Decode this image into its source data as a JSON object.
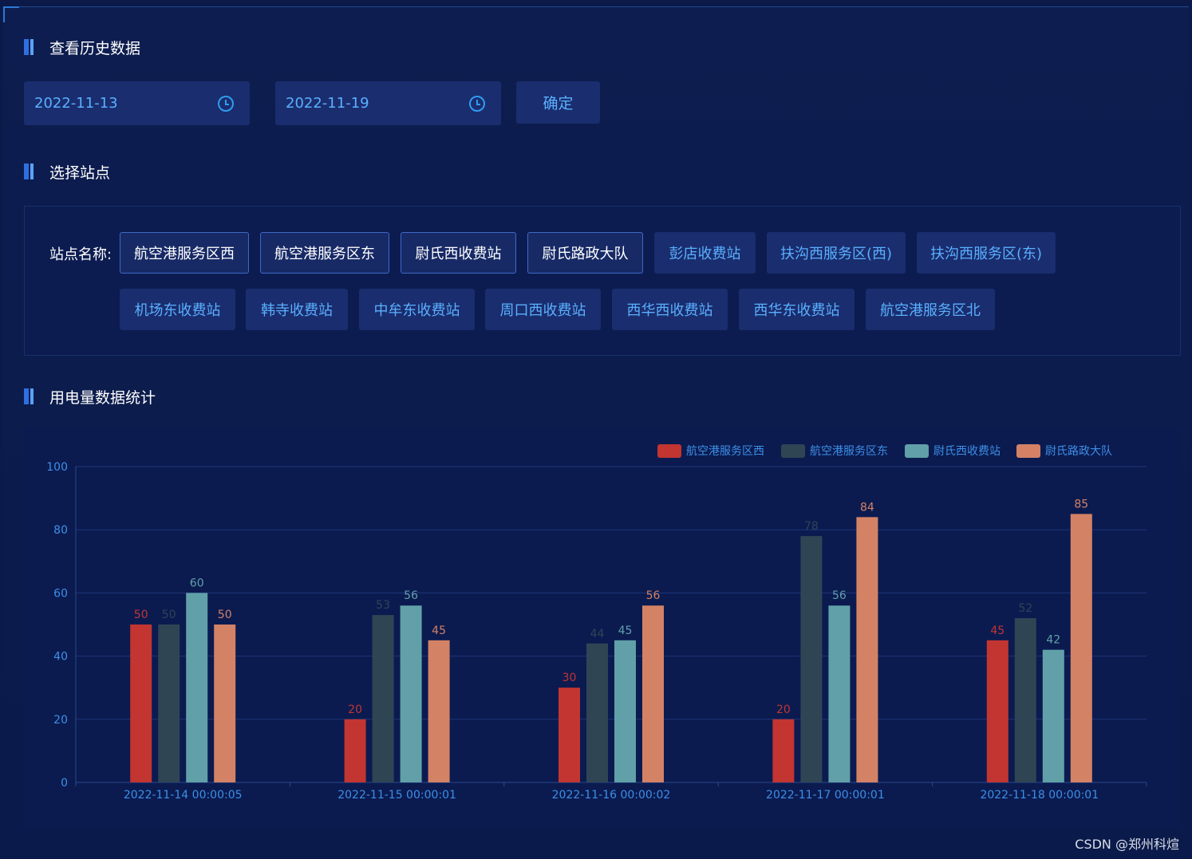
{
  "sections": {
    "history": "查看历史数据",
    "stations": "选择站点",
    "stats": "用电量数据统计"
  },
  "dates": {
    "start": "2022-11-13",
    "end": "2022-11-19",
    "confirm_label": "确定"
  },
  "station_label": "站点名称:",
  "stations": [
    {
      "name": "航空港服务区西",
      "selected": true
    },
    {
      "name": "航空港服务区东",
      "selected": true
    },
    {
      "name": "尉氏西收费站",
      "selected": true
    },
    {
      "name": "尉氏路政大队",
      "selected": true
    },
    {
      "name": "彭店收费站",
      "selected": false
    },
    {
      "name": "扶沟西服务区(西)",
      "selected": false
    },
    {
      "name": "扶沟西服务区(东)",
      "selected": false
    },
    {
      "name": "机场东收费站",
      "selected": false
    },
    {
      "name": "韩寺收费站",
      "selected": false
    },
    {
      "name": "中牟东收费站",
      "selected": false
    },
    {
      "name": "周口西收费站",
      "selected": false
    },
    {
      "name": "西华西收费站",
      "selected": false
    },
    {
      "name": "西华东收费站",
      "selected": false
    },
    {
      "name": "航空港服务区北",
      "selected": false
    }
  ],
  "chart_data": {
    "type": "bar",
    "categories": [
      "2022-11-14 00:00:05",
      "2022-11-15 00:00:01",
      "2022-11-16 00:00:02",
      "2022-11-17 00:00:01",
      "2022-11-18 00:00:01"
    ],
    "series": [
      {
        "name": "航空港服务区西",
        "color": "#c23531",
        "values": [
          50,
          20,
          30,
          20,
          45
        ]
      },
      {
        "name": "航空港服务区东",
        "color": "#2f4554",
        "values": [
          50,
          53,
          44,
          78,
          52
        ]
      },
      {
        "name": "尉氏西收费站",
        "color": "#61a0a8",
        "values": [
          60,
          56,
          45,
          56,
          42
        ]
      },
      {
        "name": "尉氏路政大队",
        "color": "#d48265",
        "values": [
          50,
          45,
          56,
          84,
          85
        ]
      }
    ],
    "ylim": [
      0,
      100
    ],
    "yticks": [
      0,
      20,
      40,
      60,
      80,
      100
    ],
    "grid": true,
    "legend": "top-right"
  },
  "watermark": "CSDN @郑州科煊"
}
